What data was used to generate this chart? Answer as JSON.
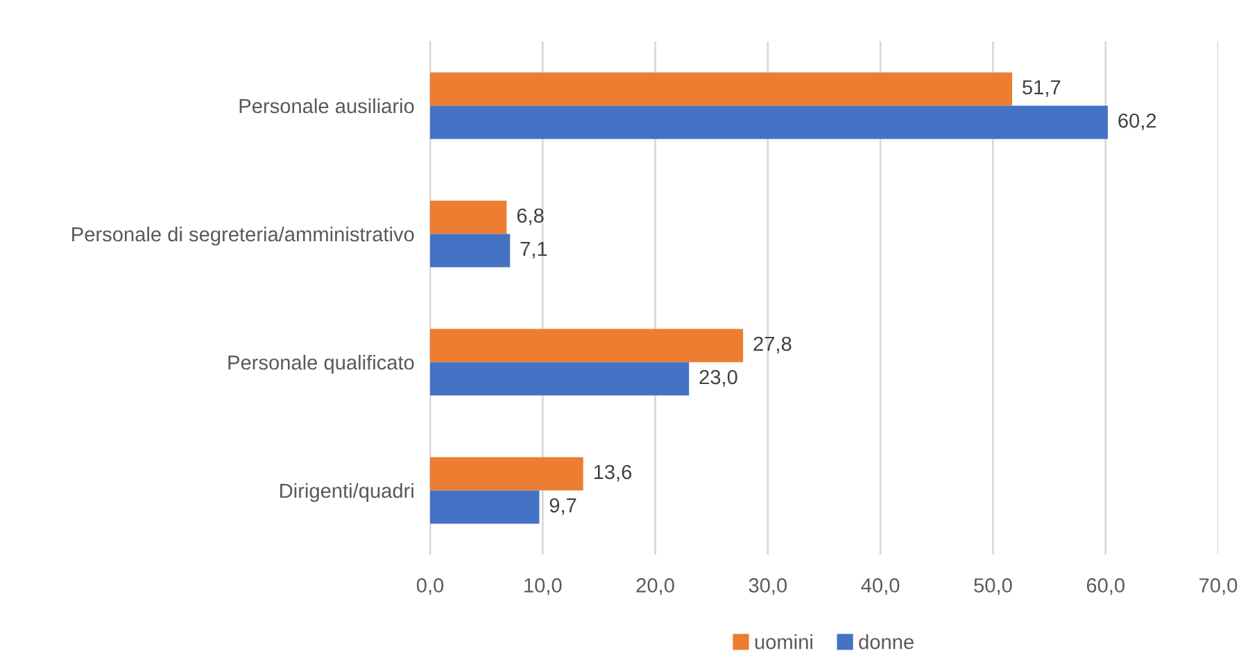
{
  "chart_data": {
    "type": "bar",
    "orientation": "horizontal",
    "categories": [
      "Personale ausiliario",
      "Personale di segreteria/amministrativo",
      "Personale qualificato",
      "Dirigenti/quadri"
    ],
    "series": [
      {
        "name": "uomini",
        "color": "#ed7d31",
        "values": [
          51.7,
          6.8,
          27.8,
          13.6
        ],
        "value_labels": [
          "51,7",
          "6,8",
          "27,8",
          "13,6"
        ]
      },
      {
        "name": "donne",
        "color": "#4472c4",
        "values": [
          60.2,
          7.1,
          23.0,
          9.7
        ],
        "value_labels": [
          "60,2",
          "7,1",
          "23,0",
          "9,7"
        ]
      }
    ],
    "xlim": [
      0,
      70
    ],
    "xticks": [
      {
        "value": 0,
        "label": "0,0"
      },
      {
        "value": 10,
        "label": "10,0"
      },
      {
        "value": 20,
        "label": "20,0"
      },
      {
        "value": 30,
        "label": "30,0"
      },
      {
        "value": 40,
        "label": "40,0"
      },
      {
        "value": 50,
        "label": "50,0"
      },
      {
        "value": 60,
        "label": "60,0"
      },
      {
        "value": 70,
        "label": "70,0"
      }
    ],
    "grid": "x",
    "legend": "bottom"
  }
}
